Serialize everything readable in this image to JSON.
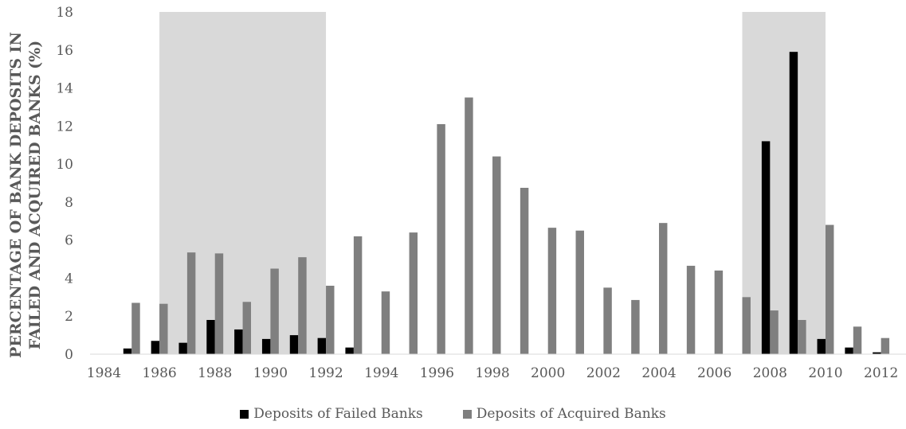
{
  "chart_data": {
    "type": "bar",
    "ylabel_lines": [
      "PERCENTAGE OF BANK DEPOSITS IN",
      "FAILED AND ACQUIRED BANKS (%)"
    ],
    "ylim": [
      0,
      18
    ],
    "yticks": [
      0,
      2,
      4,
      6,
      8,
      10,
      12,
      14,
      16,
      18
    ],
    "categories": [
      "1984",
      "1985",
      "1986",
      "1987",
      "1988",
      "1989",
      "1990",
      "1991",
      "1992",
      "1993",
      "1994",
      "1995",
      "1996",
      "1997",
      "1998",
      "1999",
      "2000",
      "2001",
      "2002",
      "2003",
      "2004",
      "2005",
      "2006",
      "2007",
      "2008",
      "2009",
      "2010",
      "2011",
      "2012",
      "2013"
    ],
    "xtick_labels": [
      "1984",
      "1986",
      "1988",
      "1990",
      "1992",
      "1994",
      "1996",
      "1998",
      "2000",
      "2002",
      "2004",
      "2006",
      "2008",
      "2010",
      "2012"
    ],
    "shaded_periods": [
      [
        "1986",
        "1991"
      ],
      [
        "2007",
        "2009"
      ]
    ],
    "series": [
      {
        "name": "Deposits of Failed Banks",
        "color": "#000000",
        "values": [
          0,
          0.3,
          0.7,
          0.6,
          1.8,
          1.3,
          0.8,
          1.0,
          0.85,
          0.35,
          0,
          0,
          0,
          0,
          0,
          0,
          0,
          0,
          0,
          0,
          0,
          0,
          0,
          0,
          11.2,
          15.9,
          0.8,
          0.35,
          0.1,
          0
        ]
      },
      {
        "name": "Deposits of Acquired Banks",
        "color": "#7f7f7f",
        "values": [
          0,
          2.7,
          2.65,
          5.35,
          5.3,
          2.75,
          4.5,
          5.1,
          3.6,
          6.2,
          3.3,
          6.4,
          12.1,
          13.5,
          10.4,
          8.75,
          6.65,
          6.5,
          3.5,
          2.85,
          6.9,
          4.65,
          4.4,
          3.0,
          2.3,
          1.8,
          6.8,
          1.45,
          0.85,
          0.75
        ]
      }
    ]
  }
}
